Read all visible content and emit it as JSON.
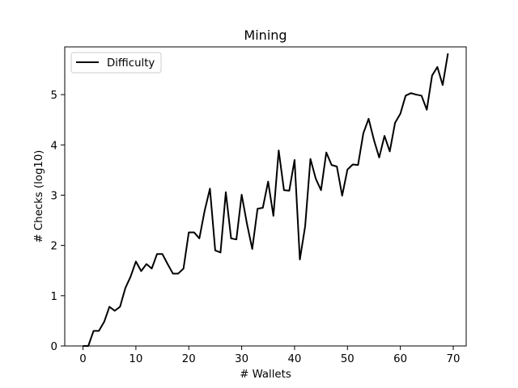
{
  "chart_data": {
    "type": "line",
    "title": "Mining",
    "xlabel": "# Wallets",
    "ylabel": "# Checks (log10)",
    "xlim": [
      -3.45,
      72.45
    ],
    "ylim": [
      0,
      5.95
    ],
    "xticks": [
      0,
      10,
      20,
      30,
      40,
      50,
      60,
      70
    ],
    "yticks": [
      0,
      1,
      2,
      3,
      4,
      5
    ],
    "grid": false,
    "legend_position": "top-left",
    "series": [
      {
        "name": "Difficulty",
        "color": "#000000",
        "x": [
          0,
          1,
          2,
          3,
          4,
          5,
          6,
          7,
          8,
          9,
          10,
          11,
          12,
          13,
          14,
          15,
          16,
          17,
          18,
          19,
          20,
          21,
          22,
          23,
          24,
          25,
          26,
          27,
          28,
          29,
          30,
          31,
          32,
          33,
          34,
          35,
          36,
          37,
          38,
          39,
          40,
          41,
          42,
          43,
          44,
          45,
          46,
          47,
          48,
          49,
          50,
          51,
          52,
          53,
          54,
          55,
          56,
          57,
          58,
          59,
          60,
          61,
          62,
          63,
          64,
          65,
          66,
          67,
          68,
          69
        ],
        "y": [
          0,
          0,
          0.3,
          0.3,
          0.48,
          0.78,
          0.7,
          0.78,
          1.15,
          1.38,
          1.68,
          1.49,
          1.63,
          1.54,
          1.83,
          1.83,
          1.63,
          1.44,
          1.44,
          1.54,
          2.26,
          2.26,
          2.14,
          2.69,
          3.13,
          1.9,
          1.86,
          3.06,
          2.14,
          2.12,
          3.01,
          2.43,
          1.93,
          2.73,
          2.75,
          3.27,
          2.59,
          3.89,
          3.1,
          3.09,
          3.7,
          1.72,
          2.38,
          3.72,
          3.33,
          3.1,
          3.85,
          3.6,
          3.57,
          2.99,
          3.51,
          3.61,
          3.6,
          4.23,
          4.52,
          4.1,
          3.75,
          4.18,
          3.87,
          4.44,
          4.62,
          4.98,
          5.03,
          5.0,
          4.98,
          4.7,
          5.38,
          5.55,
          5.19,
          5.82
        ]
      }
    ]
  }
}
